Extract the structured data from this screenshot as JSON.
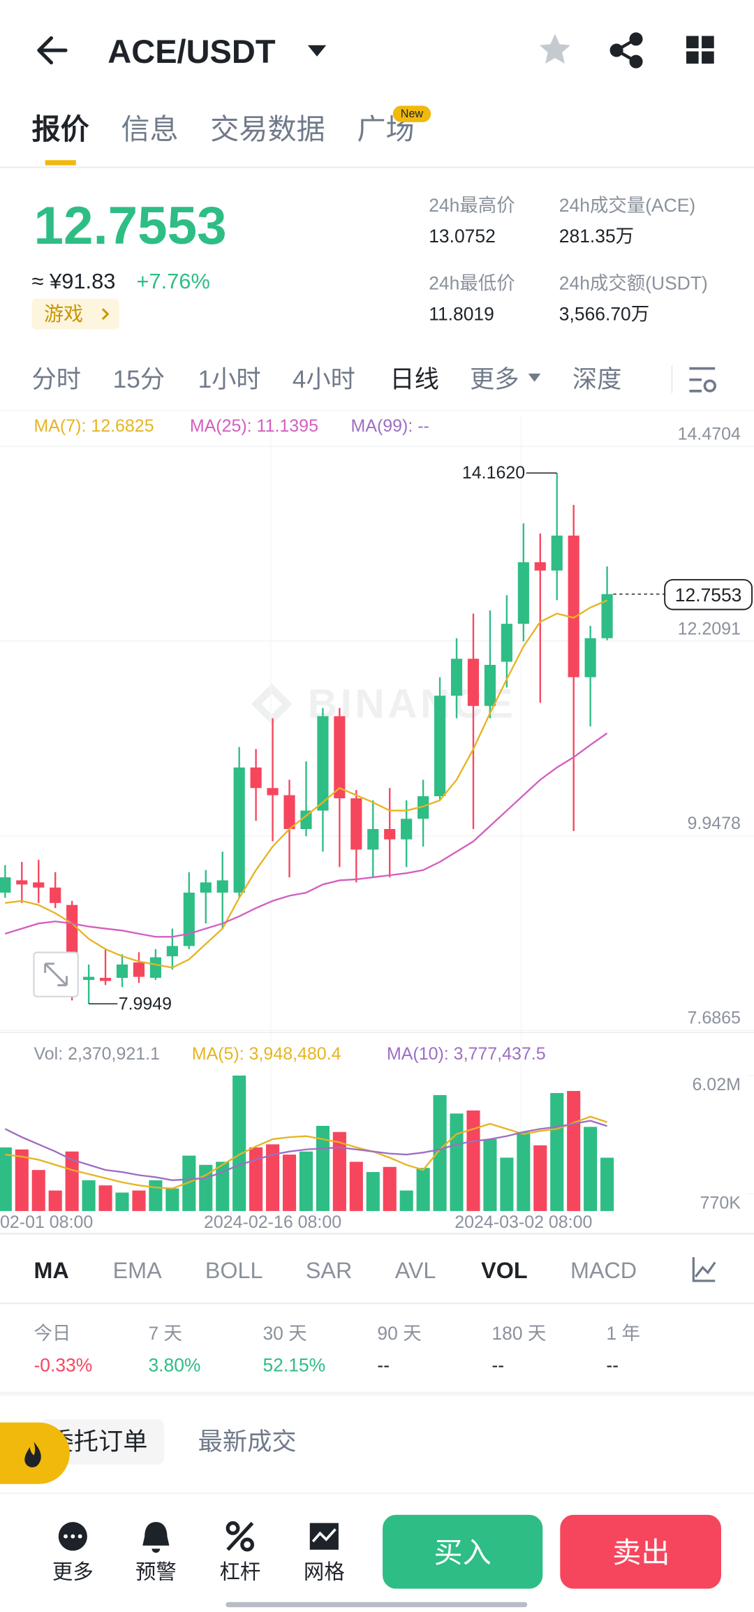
{
  "header": {
    "pair": "ACE/USDT"
  },
  "tabs": {
    "items": [
      "报价",
      "信息",
      "交易数据",
      "广场"
    ],
    "badge": "New"
  },
  "price": {
    "last": "12.7553",
    "cny": "≈ ¥91.83",
    "change": "+7.76%",
    "tag": "游戏"
  },
  "stats": [
    {
      "label": "24h最高价",
      "value": "13.0752"
    },
    {
      "label": "24h成交量(ACE)",
      "value": "281.35万"
    },
    {
      "label": "24h最低价",
      "value": "11.8019"
    },
    {
      "label": "24h成交额(USDT)",
      "value": "3,566.70万"
    }
  ],
  "intervals": [
    "分时",
    "15分",
    "1小时",
    "4小时",
    "日线",
    "更多",
    "深度"
  ],
  "chart_data": {
    "type": "candlestick",
    "watermark": "BINANCE",
    "categories": [
      null,
      "02-01 08:00",
      null,
      null,
      null,
      null,
      null,
      null,
      null,
      null,
      null,
      null,
      null,
      null,
      null,
      null,
      "2024-02-16 08:00",
      null,
      null,
      null,
      null,
      null,
      null,
      null,
      null,
      null,
      null,
      null,
      null,
      null,
      null,
      "2024-03-02 08:00",
      null,
      null,
      null,
      null,
      null
    ],
    "open": [
      9.287,
      9.43,
      9.406,
      9.346,
      9.144,
      8.273,
      8.297,
      8.297,
      8.476,
      8.297,
      8.548,
      8.667,
      9.287,
      9.287,
      9.287,
      10.741,
      10.502,
      10.419,
      10.026,
      10.24,
      11.337,
      10.383,
      9.787,
      10.026,
      9.906,
      10.145,
      10.407,
      11.575,
      12.004,
      11.456,
      11.969,
      12.41,
      13.125,
      13.029,
      13.435,
      11.79,
      12.243
    ],
    "high": [
      9.608,
      9.644,
      9.668,
      9.525,
      9.191,
      8.452,
      8.631,
      8.571,
      8.595,
      8.631,
      8.869,
      9.525,
      9.549,
      9.763,
      10.979,
      10.955,
      11.313,
      10.598,
      10.812,
      11.432,
      11.432,
      10.479,
      10.359,
      10.502,
      10.359,
      10.598,
      11.79,
      12.243,
      12.529,
      12.565,
      12.743,
      13.578,
      13.459,
      14.162,
      13.792,
      12.386,
      13.077
    ],
    "low": [
      9.227,
      9.167,
      9.167,
      9.108,
      8.035,
      7.9949,
      8.214,
      8.19,
      8.238,
      8.273,
      8.393,
      8.631,
      8.929,
      8.869,
      9.227,
      10.121,
      9.883,
      9.465,
      9.942,
      9.763,
      9.585,
      9.406,
      9.465,
      9.465,
      9.585,
      9.823,
      10.359,
      11.313,
      10.026,
      11.313,
      11.671,
      12.207,
      11.492,
      12.684,
      10.002,
      11.218,
      12.219
    ],
    "close": [
      9.465,
      9.382,
      9.346,
      9.167,
      8.214,
      8.309,
      8.261,
      8.452,
      8.309,
      8.536,
      8.667,
      9.287,
      9.406,
      9.43,
      10.741,
      10.502,
      10.419,
      10.026,
      10.24,
      11.337,
      10.383,
      9.787,
      10.026,
      9.906,
      10.145,
      10.407,
      11.575,
      12.004,
      11.456,
      11.933,
      12.41,
      13.125,
      13.029,
      13.435,
      11.79,
      12.243,
      12.7553
    ],
    "up_color": "#2ebd85",
    "down_color": "#f6465d",
    "ylim": [
      7.6865,
      14.4704
    ],
    "yticks": [
      14.4704,
      12.2091,
      9.9478,
      7.6865
    ],
    "grid": true,
    "ma_lines": [
      {
        "label": "MA(7): 12.6825",
        "color": "#e6b422",
        "values": [
          9.167,
          9.191,
          9.144,
          9.048,
          8.929,
          8.75,
          8.631,
          8.548,
          8.488,
          8.452,
          8.416,
          8.512,
          8.691,
          8.869,
          9.227,
          9.549,
          9.823,
          10.026,
          10.181,
          10.336,
          10.502,
          10.419,
          10.336,
          10.24,
          10.24,
          10.288,
          10.359,
          10.598,
          10.955,
          11.373,
          11.766,
          12.147,
          12.433,
          12.529,
          12.481,
          12.6,
          12.6825
        ]
      },
      {
        "label": "MA(25): 11.1395",
        "color": "#d35ec0",
        "values": [
          8.81,
          8.869,
          8.929,
          8.953,
          8.929,
          8.893,
          8.869,
          8.846,
          8.81,
          8.774,
          8.774,
          8.81,
          8.869,
          8.929,
          9.012,
          9.108,
          9.191,
          9.251,
          9.287,
          9.382,
          9.43,
          9.442,
          9.465,
          9.489,
          9.513,
          9.549,
          9.644,
          9.763,
          9.883,
          10.061,
          10.24,
          10.419,
          10.598,
          10.741,
          10.86,
          11.003,
          11.1395
        ]
      },
      {
        "label": "MA(99): --",
        "color": "#9c6ec4",
        "values": [
          null,
          null,
          null,
          null,
          null,
          null,
          null,
          null,
          null,
          null,
          null,
          null,
          null,
          null,
          null,
          null,
          null,
          null,
          null,
          null,
          null,
          null,
          null,
          null,
          null,
          null,
          null,
          null,
          null,
          null,
          null,
          null,
          null,
          null,
          null,
          null,
          null
        ]
      }
    ],
    "last_label": "12.7553",
    "high_label": "14.1620",
    "low_label": "7.9949",
    "volume": {
      "legend": "Vol: 2,370,921.1",
      "values": [
        2828000,
        2736000,
        1824000,
        912000,
        2645000,
        1368000,
        1140000,
        821000,
        912000,
        1368000,
        1003000,
        2463000,
        2052000,
        2189000,
        6020000,
        2828000,
        2964000,
        2508000,
        2645000,
        3785000,
        3512000,
        2189000,
        1733000,
        1961000,
        912000,
        1915000,
        5153000,
        4333000,
        4469000,
        3192000,
        2372000,
        3512000,
        2919000,
        5245000,
        5336000,
        3740000,
        2370921.1
      ],
      "ylim": [
        0,
        6020000
      ],
      "yticks": [
        {
          "value": 6020000,
          "label": "6.02M"
        },
        {
          "value": 770000,
          "label": "770K"
        }
      ],
      "ma_lines": [
        {
          "label": "MA(5): 3,948,480.4",
          "color": "#e6b422",
          "values": [
            2508000,
            2417000,
            2280000,
            2052000,
            1824000,
            1642000,
            1459000,
            1277000,
            1140000,
            1049000,
            1003000,
            1277000,
            1596000,
            2052000,
            2508000,
            2873000,
            3192000,
            3284000,
            3329000,
            3192000,
            3056000,
            2828000,
            2645000,
            2372000,
            2052000,
            1824000,
            2736000,
            3420000,
            3648000,
            3877000,
            3648000,
            3420000,
            3557000,
            3648000,
            3922000,
            4196000,
            3948480.4
          ]
        },
        {
          "label": "MA(10): 3,777,437.5",
          "color": "#9c6ec4",
          "values": [
            3648000,
            3284000,
            2964000,
            2645000,
            2280000,
            2052000,
            1824000,
            1733000,
            1596000,
            1505000,
            1368000,
            1414000,
            1459000,
            1733000,
            2052000,
            2280000,
            2508000,
            2645000,
            2736000,
            2782000,
            2828000,
            2736000,
            2645000,
            2554000,
            2508000,
            2600000,
            2736000,
            2964000,
            3101000,
            3192000,
            3329000,
            3512000,
            3648000,
            3740000,
            3876000,
            4013000,
            3777437.5
          ]
        }
      ]
    }
  },
  "indicators": {
    "items": [
      "MA",
      "EMA",
      "BOLL",
      "SAR",
      "AVL",
      "VOL",
      "MACD"
    ],
    "active": [
      "MA",
      "VOL"
    ]
  },
  "performance": [
    {
      "label": "今日",
      "value": "-0.33%"
    },
    {
      "label": "7 天",
      "value": "3.80%"
    },
    {
      "label": "30 天",
      "value": "52.15%"
    },
    {
      "label": "90 天",
      "value": "--"
    },
    {
      "label": "180 天",
      "value": "--"
    },
    {
      "label": "1 年",
      "value": "--"
    }
  ],
  "order_tabs": [
    "委托订单",
    "最新成交"
  ],
  "bottom_nav": [
    "更多",
    "预警",
    "杠杆",
    "网格"
  ],
  "actions": {
    "buy": "买入",
    "sell": "卖出"
  }
}
